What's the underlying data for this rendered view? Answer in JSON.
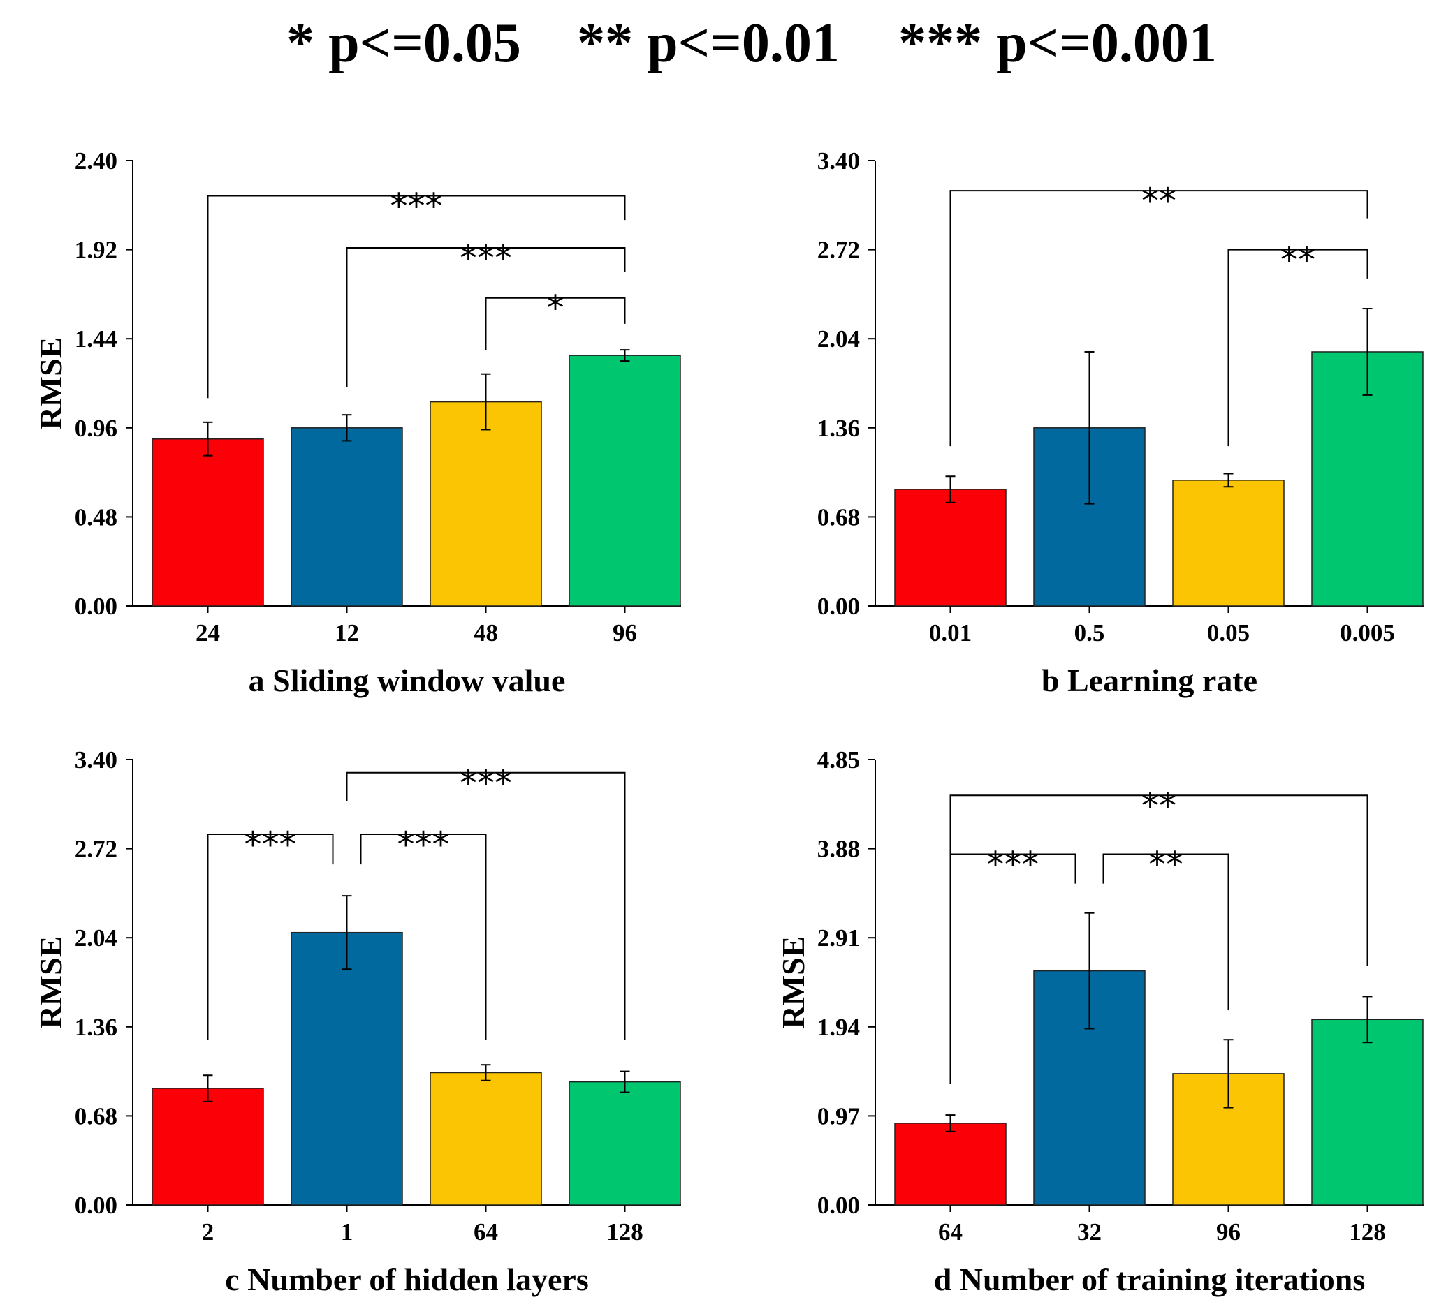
{
  "legend": {
    "items": [
      "* p<=0.05",
      "** p<=0.01",
      "*** p<=0.001"
    ]
  },
  "colors": {
    "c0": "#fb0006",
    "c1": "#02699f",
    "c2": "#fbc503",
    "c3": "#00c76f"
  },
  "chart_data": [
    {
      "type": "bar",
      "panel": "a",
      "title": "a Sliding window value",
      "ylabel": "RMSE",
      "categories": [
        "24",
        "12",
        "48",
        "96"
      ],
      "values": [
        0.9,
        0.96,
        1.1,
        1.35
      ],
      "errors": [
        0.09,
        0.07,
        0.15,
        0.03
      ],
      "ylim": [
        0,
        2.4
      ],
      "yticks": [
        "0.00",
        "0.48",
        "0.96",
        "1.44",
        "1.92",
        "2.40"
      ],
      "significance": [
        {
          "from": 0,
          "to": 3,
          "stars": "***",
          "y": 2.21,
          "from_drop": 1.12,
          "to_drop": 2.08
        },
        {
          "from": 1,
          "to": 3,
          "stars": "***",
          "y": 1.93,
          "from_drop": 1.18,
          "to_drop": 1.8
        },
        {
          "from": 2,
          "to": 3,
          "stars": "*",
          "y": 1.66,
          "from_drop": 1.38,
          "to_drop": 1.52
        }
      ]
    },
    {
      "type": "bar",
      "panel": "b",
      "title": "b Learning rate",
      "ylabel": "",
      "categories": [
        "0.01",
        "0.5",
        "0.05",
        "0.005"
      ],
      "values": [
        0.89,
        1.36,
        0.96,
        1.94
      ],
      "errors": [
        0.1,
        0.58,
        0.05,
        0.33
      ],
      "ylim": [
        0,
        3.4
      ],
      "yticks": [
        "0.00",
        "0.68",
        "1.36",
        "2.04",
        "2.72",
        "3.40"
      ],
      "significance": [
        {
          "from": 0,
          "to": 3,
          "stars": "**",
          "y": 3.17,
          "from_drop": 1.22,
          "to_drop": 2.96
        },
        {
          "from": 2,
          "to": 3,
          "stars": "**",
          "y": 2.72,
          "from_drop": 1.22,
          "to_drop": 2.5
        }
      ]
    },
    {
      "type": "bar",
      "panel": "c",
      "title": "c Number of hidden layers",
      "ylabel": "RMSE",
      "categories": [
        "2",
        "1",
        "64",
        "128"
      ],
      "values": [
        0.89,
        2.08,
        1.01,
        0.94
      ],
      "errors": [
        0.1,
        0.28,
        0.06,
        0.08
      ],
      "ylim": [
        0,
        3.4
      ],
      "yticks": [
        "0.00",
        "0.68",
        "1.36",
        "2.04",
        "2.72",
        "3.40"
      ],
      "significance": [
        {
          "from": 1,
          "to": 3,
          "stars": "***",
          "y": 3.3,
          "from_drop": 3.08,
          "to_drop": 1.26
        },
        {
          "from": 0,
          "to": 1,
          "stars": "***",
          "y": 2.83,
          "from_drop": 1.26,
          "to_drop": 2.6
        },
        {
          "from": 1,
          "to": 2,
          "stars": "***",
          "y": 2.83,
          "from_drop": 2.6,
          "to_drop": 1.26
        }
      ]
    },
    {
      "type": "bar",
      "panel": "d",
      "title": "d Number of training iterations",
      "ylabel": "RMSE",
      "categories": [
        "64",
        "32",
        "96",
        "128"
      ],
      "values": [
        0.89,
        2.55,
        1.43,
        2.02
      ],
      "errors": [
        0.09,
        0.63,
        0.37,
        0.25
      ],
      "ylim": [
        0,
        4.85
      ],
      "yticks": [
        "0.00",
        "0.97",
        "1.94",
        "2.91",
        "3.88",
        "4.85"
      ],
      "significance": [
        {
          "from": 0,
          "to": 3,
          "stars": "**",
          "y": 4.46,
          "from_drop": 1.32,
          "to_drop": 2.6
        },
        {
          "from": 0,
          "to": 1,
          "stars": "***",
          "y": 3.82,
          "from_drop": 1.32,
          "to_drop": 3.5
        },
        {
          "from": 1,
          "to": 2,
          "stars": "**",
          "y": 3.82,
          "from_drop": 3.5,
          "to_drop": 2.12
        }
      ]
    }
  ]
}
